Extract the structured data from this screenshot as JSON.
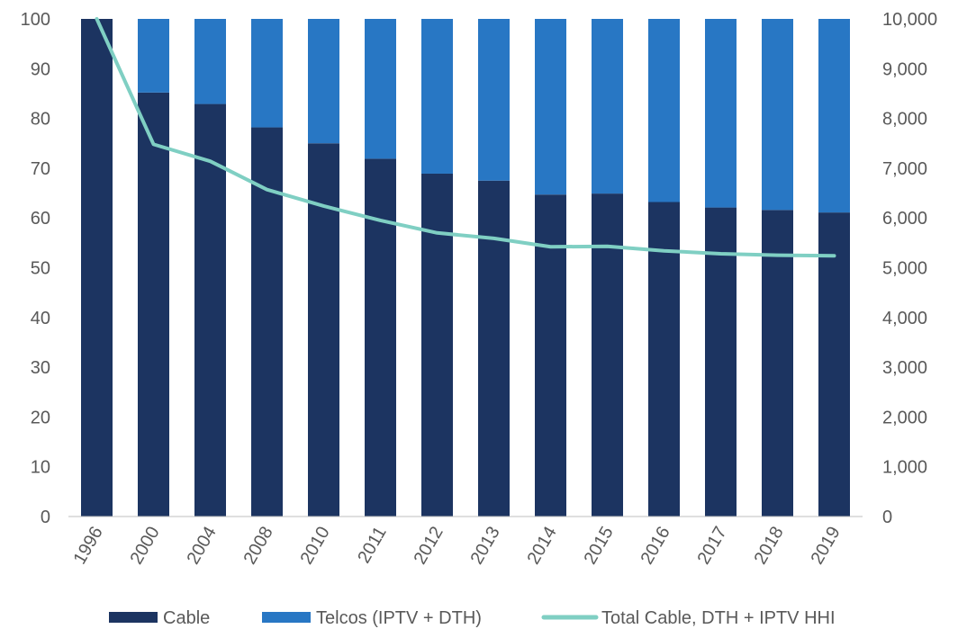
{
  "chart_data": {
    "type": "bar",
    "stacked": true,
    "categories": [
      "1996",
      "2000",
      "2004",
      "2008",
      "2010",
      "2011",
      "2012",
      "2013",
      "2014",
      "2015",
      "2016",
      "2017",
      "2018",
      "2019"
    ],
    "series": [
      {
        "name": "Cable",
        "type": "bar",
        "axis": "left",
        "color": "#1c3461",
        "values": [
          100,
          85.2,
          82.9,
          78.2,
          75.0,
          71.9,
          68.9,
          67.5,
          64.7,
          64.9,
          63.2,
          62.1,
          61.6,
          61.1
        ]
      },
      {
        "name": "Telcos (IPTV + DTH)",
        "type": "bar",
        "axis": "left",
        "color": "#2877c4",
        "values": [
          0,
          14.8,
          17.1,
          21.8,
          25.0,
          28.1,
          31.1,
          32.5,
          35.3,
          35.1,
          36.8,
          37.9,
          38.4,
          38.9
        ]
      },
      {
        "name": "Total Cable, DTH + IPTV HHI",
        "type": "line",
        "axis": "right",
        "color": "#7fcfc3",
        "values": [
          10000,
          7480,
          7140,
          6570,
          6240,
          5950,
          5700,
          5590,
          5420,
          5430,
          5340,
          5280,
          5250,
          5240
        ]
      }
    ],
    "left_axis": {
      "ylim": [
        0,
        100
      ],
      "ticks": [
        "0",
        "10",
        "20",
        "30",
        "40",
        "50",
        "60",
        "70",
        "80",
        "90",
        "100"
      ]
    },
    "right_axis": {
      "ylim": [
        0,
        10000
      ],
      "ticks": [
        "0",
        "1,000",
        "2,000",
        "3,000",
        "4,000",
        "5,000",
        "6,000",
        "7,000",
        "8,000",
        "9,000",
        "10,000"
      ]
    },
    "grid": false,
    "legend": "bottom"
  }
}
